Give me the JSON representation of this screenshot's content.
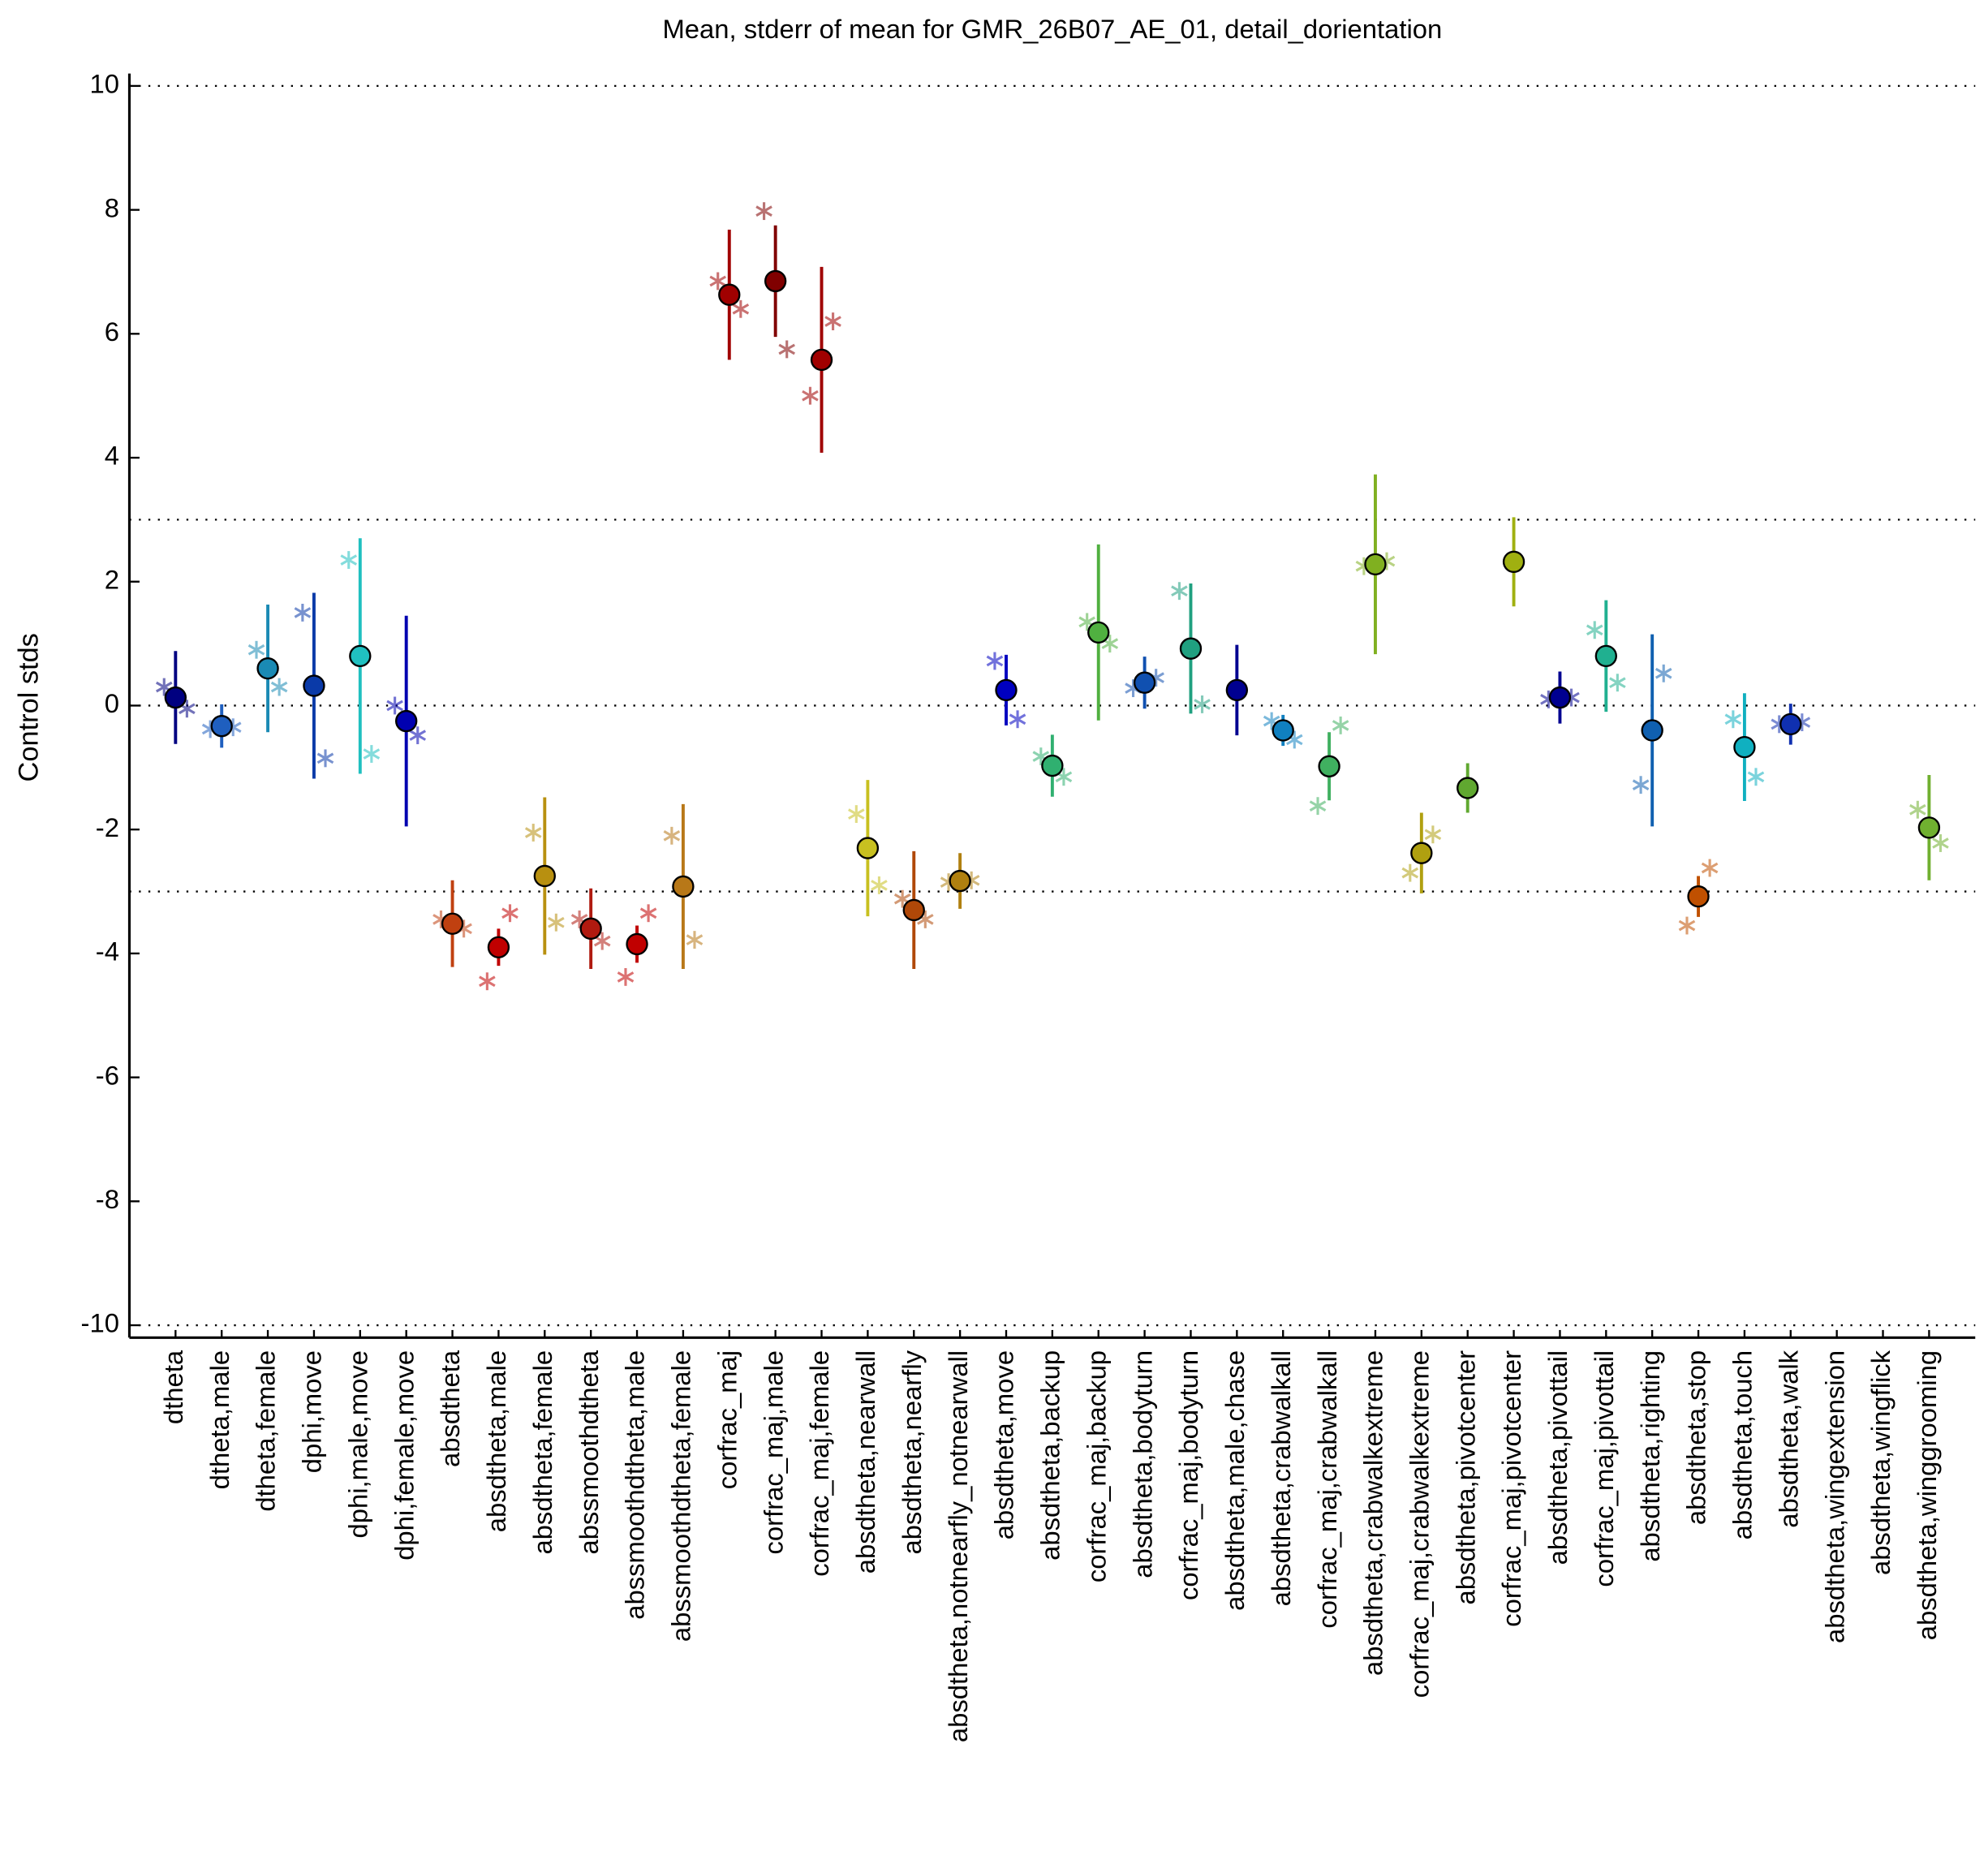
{
  "chart_data": {
    "type": "errorbar",
    "title": "Mean, stderr of mean for GMR_26B07_AE_01, detail_dorientation",
    "ylabel": "Control stds",
    "categories": [
      "dtheta",
      "dtheta,male",
      "dtheta,female",
      "dphi,move",
      "dphi,male,move",
      "dphi,female,move",
      "absdtheta",
      "absdtheta,male",
      "absdtheta,female",
      "abssmoothdtheta",
      "abssmoothdtheta,male",
      "abssmoothdtheta,female",
      "corfrac_maj",
      "corfrac_maj,male",
      "corfrac_maj,female",
      "absdtheta,nearwall",
      "absdtheta,nearfly",
      "absdtheta,notnearfly_notnearwall",
      "absdtheta,move",
      "absdtheta,backup",
      "corfrac_maj,backup",
      "absdtheta,bodyturn",
      "corfrac_maj,bodyturn",
      "absdtheta,male,chase",
      "absdtheta,crabwalkall",
      "corfrac_maj,crabwalkall",
      "absdtheta,crabwalkextreme",
      "corfrac_maj,crabwalkextreme",
      "absdtheta,pivotcenter",
      "corfrac_maj,pivotcenter",
      "absdtheta,pivottail",
      "corfrac_maj,pivottail",
      "absdtheta,righting",
      "absdtheta,stop",
      "absdtheta,touch",
      "absdtheta,walk",
      "absdtheta,wingextension",
      "absdtheta,wingflick",
      "absdtheta,winggrooming"
    ],
    "values": [
      0.13,
      -0.33,
      0.6,
      0.32,
      0.8,
      -0.25,
      -3.52,
      -3.9,
      -2.75,
      -3.6,
      -3.85,
      -2.92,
      6.63,
      6.85,
      5.58,
      -2.3,
      -3.3,
      -2.83,
      0.25,
      -0.97,
      1.18,
      0.37,
      0.92,
      0.25,
      -0.4,
      -0.98,
      2.28,
      -2.38,
      -1.33,
      2.32,
      0.13,
      0.8,
      -0.4,
      -3.08,
      -0.67,
      -0.3,
      null,
      null,
      -1.97
    ],
    "errors": [
      0.75,
      0.35,
      1.03,
      1.5,
      1.9,
      1.7,
      0.7,
      0.3,
      1.27,
      0.65,
      0.3,
      1.33,
      1.05,
      0.9,
      1.5,
      1.1,
      0.95,
      0.45,
      0.57,
      0.5,
      1.42,
      0.42,
      1.05,
      0.73,
      0.25,
      0.55,
      1.45,
      0.65,
      0.4,
      0.72,
      0.42,
      0.9,
      1.55,
      0.33,
      0.87,
      0.33,
      null,
      null,
      0.85
    ],
    "markers_left": [
      0.3,
      -0.38,
      0.9,
      1.5,
      2.35,
      0.0,
      -3.45,
      -4.45,
      -2.05,
      -3.45,
      -4.38,
      -2.1,
      6.85,
      7.98,
      5.0,
      -1.75,
      -3.12,
      -2.85,
      0.72,
      -0.82,
      1.35,
      0.28,
      1.85,
      null,
      -0.25,
      -1.62,
      2.25,
      -2.7,
      null,
      null,
      0.1,
      1.22,
      -1.28,
      -3.55,
      -0.22,
      -0.3,
      null,
      null,
      -1.68
    ],
    "markers_right": [
      -0.05,
      -0.35,
      0.3,
      -0.85,
      -0.78,
      -0.48,
      -3.6,
      -3.35,
      -3.5,
      -3.8,
      -3.35,
      -3.78,
      6.4,
      5.75,
      6.2,
      -2.9,
      -3.45,
      -2.82,
      -0.22,
      -1.15,
      1.0,
      0.45,
      0.02,
      null,
      -0.55,
      -0.32,
      2.33,
      -2.08,
      null,
      null,
      0.13,
      0.37,
      0.52,
      -2.62,
      -1.15,
      -0.27,
      null,
      null,
      -2.22
    ],
    "colors": [
      "#000080",
      "#1f5fbf",
      "#1a8ab4",
      "#0a3aa8",
      "#20c0c0",
      "#0000b0",
      "#c04010",
      "#c00000",
      "#b89010",
      "#b01a10",
      "#c00000",
      "#b87818",
      "#a00000",
      "#800000",
      "#a00000",
      "#c8c020",
      "#b04808",
      "#b08010",
      "#0000c0",
      "#30b070",
      "#50b040",
      "#1050b0",
      "#20a080",
      "#000090",
      "#1080c0",
      "#40b060",
      "#80b020",
      "#b0a010",
      "#60a830",
      "#a0b010",
      "#000090",
      "#20b090",
      "#1060b0",
      "#c05000",
      "#10b0c0",
      "#1030b0",
      "#999999",
      "#999999",
      "#70b030"
    ],
    "ylim": [
      -10.2,
      10.2
    ],
    "yticks": [
      -10,
      -8,
      -6,
      -4,
      -2,
      0,
      2,
      4,
      6,
      8,
      10
    ],
    "dotted_lines": [
      10,
      3,
      0,
      -3,
      -10
    ]
  }
}
